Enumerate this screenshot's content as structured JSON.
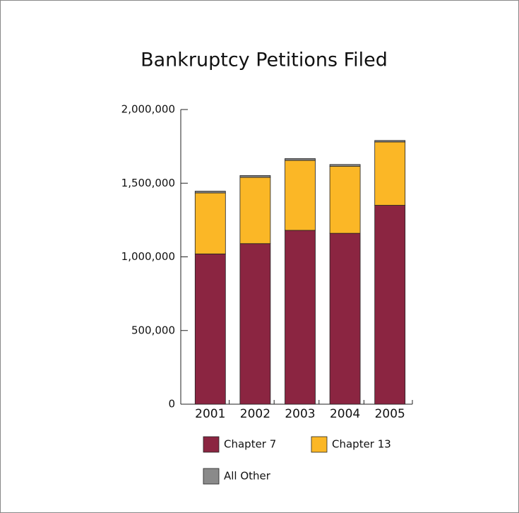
{
  "chart_data": {
    "type": "stacked_bar",
    "title": "Bankruptcy Petitions Filed",
    "categories": [
      "2001",
      "2002",
      "2003",
      "2004",
      "2005"
    ],
    "series": [
      {
        "name": "Chapter 7",
        "color": "#8b2541",
        "values": [
          1020000,
          1090000,
          1180000,
          1160000,
          1350000
        ]
      },
      {
        "name": "Chapter 13",
        "color": "#fbb726",
        "values": [
          414000,
          450000,
          475000,
          455000,
          430000
        ]
      },
      {
        "name": "All Other",
        "color": "#8a8a8a",
        "values": [
          12000,
          12000,
          12000,
          12000,
          10000
        ]
      }
    ],
    "ylim": [
      0,
      2000000
    ],
    "yticks": [
      0,
      {
        "value": 500000,
        "label": "500,000"
      },
      {
        "value": 1000000,
        "label": "1,000,000"
      },
      {
        "value": 1500000,
        "label": "1,500,000"
      },
      {
        "value": 2000000,
        "label": "2,000,000"
      }
    ]
  }
}
